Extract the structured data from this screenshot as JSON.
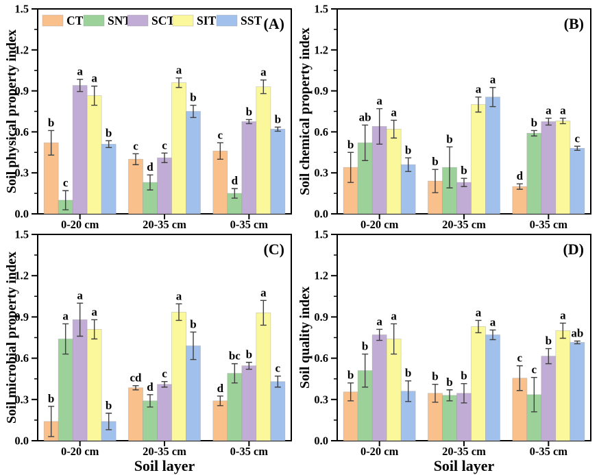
{
  "figure": {
    "background": "#FFFFFF",
    "axis_color": "#000000",
    "error_bar_color": "#3F3F3F",
    "bar_edge_color": "#999999",
    "xlabel": "Soil layer",
    "categories": [
      "0-20 cm",
      "20-35 cm",
      "0-35 cm"
    ],
    "legend": [
      "CT",
      "SNT",
      "SCT",
      "SIT",
      "SST"
    ],
    "colors": {
      "CT": "#F9C08C",
      "SNT": "#9CD29A",
      "SCT": "#C1ACD5",
      "SIT": "#FBF89C",
      "SST": "#A2C0EC"
    },
    "ylim": [
      0.0,
      1.5
    ],
    "yticks": [
      0.0,
      0.3,
      0.6,
      0.9,
      1.2,
      1.5
    ],
    "ytick_labels": [
      "0.0",
      "0.3",
      "0.6",
      "0.9",
      "1.2",
      "1.5"
    ],
    "yminorticks": [
      0.15,
      0.45,
      0.75,
      1.05,
      1.35
    ]
  },
  "chart_data": [
    {
      "type": "bar",
      "panel_label": "(A)",
      "ylabel": "Soil physical property index",
      "categories": [
        "0-20 cm",
        "20-35 cm",
        "0-35 cm"
      ],
      "ylim": [
        0.0,
        1.5
      ],
      "legend_position": "top-left-inside",
      "series": [
        {
          "name": "CT",
          "color": "#F9C08C",
          "values": [
            0.52,
            0.4,
            0.46
          ],
          "errors": [
            0.09,
            0.04,
            0.06
          ],
          "letters": [
            "b",
            "c",
            "c"
          ]
        },
        {
          "name": "SNT",
          "color": "#9CD29A",
          "values": [
            0.1,
            0.23,
            0.15
          ],
          "errors": [
            0.07,
            0.055,
            0.035
          ],
          "letters": [
            "c",
            "d",
            "d"
          ]
        },
        {
          "name": "SCT",
          "color": "#C1ACD5",
          "values": [
            0.94,
            0.41,
            0.675
          ],
          "errors": [
            0.045,
            0.035,
            0.015
          ],
          "letters": [
            "a",
            "c",
            "b"
          ]
        },
        {
          "name": "SIT",
          "color": "#FBF89C",
          "values": [
            0.865,
            0.96,
            0.93
          ],
          "errors": [
            0.07,
            0.035,
            0.05
          ],
          "letters": [
            "a",
            "a",
            "a"
          ]
        },
        {
          "name": "SST",
          "color": "#A2C0EC",
          "values": [
            0.51,
            0.75,
            0.62
          ],
          "errors": [
            0.025,
            0.045,
            0.015
          ],
          "letters": [
            "b",
            "b",
            "b"
          ]
        }
      ]
    },
    {
      "type": "bar",
      "panel_label": "(B)",
      "ylabel": "Soil chemical property index",
      "categories": [
        "0-20 cm",
        "20-35 cm",
        "0-35 cm"
      ],
      "ylim": [
        0.0,
        1.5
      ],
      "series": [
        {
          "name": "CT",
          "color": "#F9C08C",
          "values": [
            0.34,
            0.24,
            0.2
          ],
          "errors": [
            0.11,
            0.085,
            0.02
          ],
          "letters": [
            "b",
            "b",
            "d"
          ]
        },
        {
          "name": "SNT",
          "color": "#9CD29A",
          "values": [
            0.52,
            0.34,
            0.59
          ],
          "errors": [
            0.13,
            0.15,
            0.02
          ],
          "letters": [
            "ab",
            "b",
            "b"
          ]
        },
        {
          "name": "SCT",
          "color": "#C1ACD5",
          "values": [
            0.64,
            0.23,
            0.675
          ],
          "errors": [
            0.13,
            0.03,
            0.025
          ],
          "letters": [
            "a",
            "b",
            "a"
          ]
        },
        {
          "name": "SIT",
          "color": "#FBF89C",
          "values": [
            0.62,
            0.8,
            0.68
          ],
          "errors": [
            0.065,
            0.055,
            0.02
          ],
          "letters": [
            "a",
            "a",
            "a"
          ]
        },
        {
          "name": "SST",
          "color": "#A2C0EC",
          "values": [
            0.36,
            0.855,
            0.48
          ],
          "errors": [
            0.05,
            0.07,
            0.015
          ],
          "letters": [
            "b",
            "a",
            "c"
          ]
        }
      ]
    },
    {
      "type": "bar",
      "panel_label": "(C)",
      "ylabel": "Soil microbial property index",
      "categories": [
        "0-20 cm",
        "20-35 cm",
        "0-35 cm"
      ],
      "ylim": [
        0.0,
        1.5
      ],
      "series": [
        {
          "name": "CT",
          "color": "#F9C08C",
          "values": [
            0.14,
            0.385,
            0.29
          ],
          "errors": [
            0.11,
            0.015,
            0.035
          ],
          "letters": [
            "b",
            "cd",
            "d"
          ]
        },
        {
          "name": "SNT",
          "color": "#9CD29A",
          "values": [
            0.74,
            0.29,
            0.49
          ],
          "errors": [
            0.11,
            0.045,
            0.07
          ],
          "letters": [
            "a",
            "d",
            "bc"
          ]
        },
        {
          "name": "SCT",
          "color": "#C1ACD5",
          "values": [
            0.88,
            0.41,
            0.545
          ],
          "errors": [
            0.12,
            0.02,
            0.025
          ],
          "letters": [
            "a",
            "c",
            "b"
          ]
        },
        {
          "name": "SIT",
          "color": "#FBF89C",
          "values": [
            0.81,
            0.935,
            0.93
          ],
          "errors": [
            0.07,
            0.06,
            0.09
          ],
          "letters": [
            "a",
            "a",
            "a"
          ]
        },
        {
          "name": "SST",
          "color": "#A2C0EC",
          "values": [
            0.14,
            0.69,
            0.43
          ],
          "errors": [
            0.06,
            0.1,
            0.04
          ],
          "letters": [
            "b",
            "b",
            "c"
          ]
        }
      ]
    },
    {
      "type": "bar",
      "panel_label": "(D)",
      "ylabel": "Soil quality index",
      "categories": [
        "0-20 cm",
        "20-35 cm",
        "0-35 cm"
      ],
      "ylim": [
        0.0,
        1.5
      ],
      "series": [
        {
          "name": "CT",
          "color": "#F9C08C",
          "values": [
            0.355,
            0.345,
            0.455
          ],
          "errors": [
            0.065,
            0.065,
            0.09
          ],
          "letters": [
            "b",
            "b",
            "c"
          ]
        },
        {
          "name": "SNT",
          "color": "#9CD29A",
          "values": [
            0.51,
            0.33,
            0.335
          ],
          "errors": [
            0.12,
            0.04,
            0.125
          ],
          "letters": [
            "b",
            "b",
            "c"
          ]
        },
        {
          "name": "SCT",
          "color": "#C1ACD5",
          "values": [
            0.77,
            0.345,
            0.615
          ],
          "errors": [
            0.04,
            0.07,
            0.055
          ],
          "letters": [
            "a",
            "b",
            "b"
          ]
        },
        {
          "name": "SIT",
          "color": "#FBF89C",
          "values": [
            0.74,
            0.83,
            0.8
          ],
          "errors": [
            0.11,
            0.045,
            0.055
          ],
          "letters": [
            "a",
            "a",
            "a"
          ]
        },
        {
          "name": "SST",
          "color": "#A2C0EC",
          "values": [
            0.36,
            0.77,
            0.715
          ],
          "errors": [
            0.075,
            0.035,
            0.01
          ],
          "letters": [
            "b",
            "a",
            "ab"
          ]
        }
      ]
    }
  ]
}
